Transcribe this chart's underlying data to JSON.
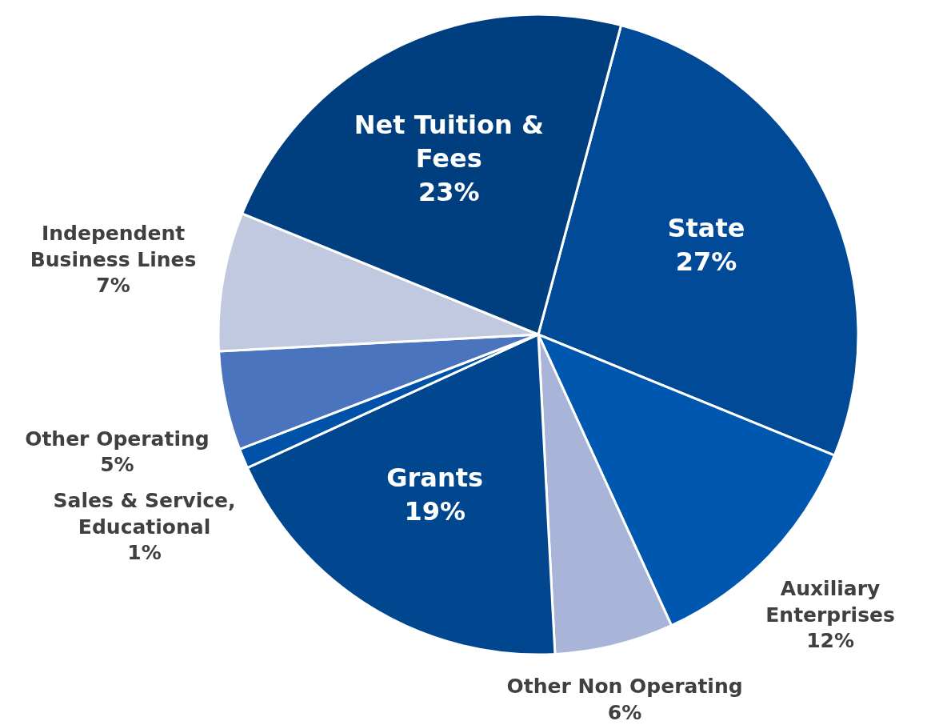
{
  "chart_data": {
    "type": "pie",
    "categories": [
      "State",
      "Auxiliary Enterprises",
      "Other Non Operating",
      "Grants",
      "Sales & Service, Educational",
      "Other Operating",
      "Independent Business Lines",
      "Net Tuition & Fees"
    ],
    "values": [
      27,
      12,
      6,
      19,
      1,
      5,
      7,
      23
    ],
    "colors": [
      "#004a97",
      "#0057b0",
      "#a8b4d8",
      "#00478f",
      "#0052a8",
      "#4a74bd",
      "#c1c9e0",
      "#003f7f"
    ],
    "value_labels": [
      "27%",
      "12%",
      "6%",
      "19%",
      "1%",
      "5%",
      "7%",
      "23%"
    ]
  }
}
